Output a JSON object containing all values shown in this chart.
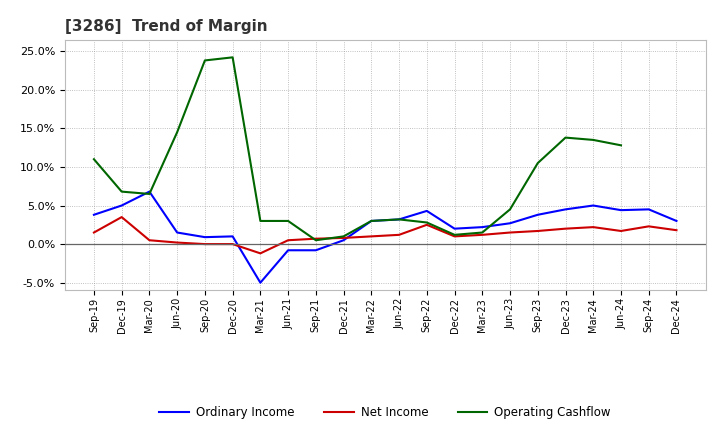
{
  "title": "[3286]  Trend of Margin",
  "x_labels": [
    "Sep-19",
    "Dec-19",
    "Mar-20",
    "Jun-20",
    "Sep-20",
    "Dec-20",
    "Mar-21",
    "Jun-21",
    "Sep-21",
    "Dec-21",
    "Mar-22",
    "Jun-22",
    "Sep-22",
    "Dec-22",
    "Mar-23",
    "Jun-23",
    "Sep-23",
    "Dec-23",
    "Mar-24",
    "Jun-24",
    "Sep-24",
    "Dec-24"
  ],
  "ordinary_income": [
    3.8,
    5.0,
    6.8,
    1.5,
    0.9,
    1.0,
    -5.0,
    -0.8,
    -0.8,
    0.5,
    3.0,
    3.2,
    4.3,
    2.0,
    2.2,
    2.7,
    3.8,
    4.5,
    5.0,
    4.4,
    4.5,
    3.0
  ],
  "net_income": [
    1.5,
    3.5,
    0.5,
    0.2,
    0.0,
    0.0,
    -1.2,
    0.5,
    0.7,
    0.8,
    1.0,
    1.2,
    2.5,
    1.0,
    1.2,
    1.5,
    1.7,
    2.0,
    2.2,
    1.7,
    2.3,
    1.8
  ],
  "operating_cashflow": [
    11.0,
    6.8,
    6.5,
    14.5,
    23.8,
    24.2,
    3.0,
    3.0,
    0.5,
    1.0,
    3.0,
    3.2,
    2.8,
    1.2,
    1.5,
    4.5,
    10.5,
    13.8,
    13.5,
    12.8,
    null,
    null
  ],
  "ylim": [
    -6.0,
    26.5
  ],
  "yticks": [
    -5.0,
    0.0,
    5.0,
    10.0,
    15.0,
    20.0,
    25.0
  ],
  "colors": {
    "ordinary_income": "#0000ff",
    "net_income": "#cc0000",
    "operating_cashflow": "#006600"
  },
  "bg_color": "#ffffff",
  "grid_color": "#999999",
  "legend_labels": [
    "Ordinary Income",
    "Net Income",
    "Operating Cashflow"
  ]
}
